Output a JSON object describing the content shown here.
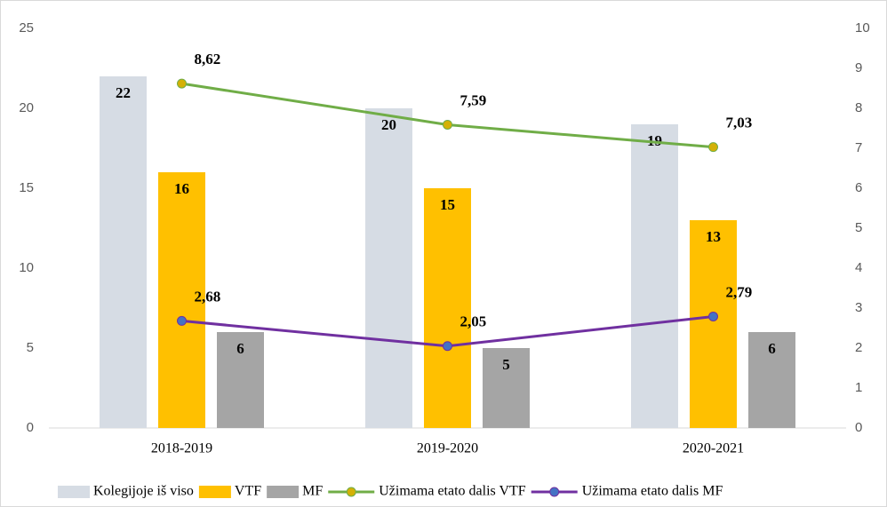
{
  "chart_data": {
    "type": "bar",
    "categories": [
      "2018-2019",
      "2019-2020",
      "2020-2021"
    ],
    "series": [
      {
        "name": "Kolegijoje iš viso",
        "color": "#d6dce4",
        "values": [
          22,
          20,
          19
        ]
      },
      {
        "name": "VTF",
        "color": "#ffc000",
        "values": [
          16,
          15,
          13
        ]
      },
      {
        "name": "MF",
        "color": "#a5a5a5",
        "values": [
          6,
          5,
          6
        ]
      },
      {
        "name": "Užimama etato dalis VTF",
        "type": "line",
        "axis": "y2",
        "color": "#70ad47",
        "marker_color": "#d4b106",
        "values": [
          8.62,
          7.59,
          7.03
        ],
        "value_labels": [
          "8,62",
          "7,59",
          "7,03"
        ]
      },
      {
        "name": "Užimama etato dalis MF",
        "type": "line",
        "axis": "y2",
        "color": "#7030a0",
        "marker_color": "#4472c4",
        "values": [
          2.68,
          2.05,
          2.79
        ],
        "value_labels": [
          "2,68",
          "2,05",
          "2,79"
        ]
      }
    ],
    "ylim": [
      0,
      25
    ],
    "yticks": [
      0,
      5,
      10,
      15,
      20,
      25
    ],
    "y2lim": [
      0,
      10
    ],
    "y2ticks": [
      0,
      1,
      2,
      3,
      4,
      5,
      6,
      7,
      8,
      9,
      10
    ],
    "legend": "bottom"
  }
}
